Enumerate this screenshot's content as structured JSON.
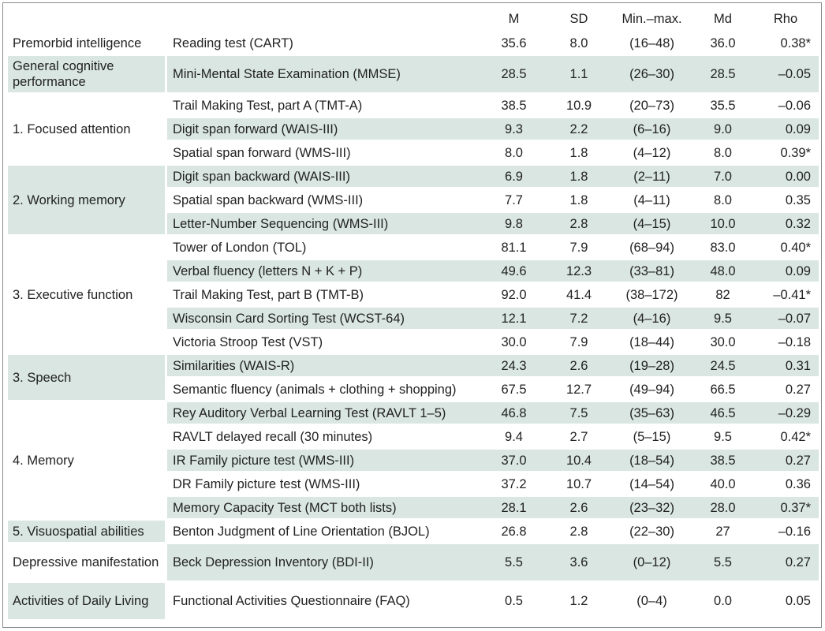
{
  "headers": [
    "",
    "",
    "M",
    "SD",
    "Min.–max.",
    "Md",
    "Rho"
  ],
  "rows": [
    {
      "domain": "Premorbid intelligence",
      "test": "Reading test (CART)",
      "m": "35.6",
      "sd": "8.0",
      "range": "(16–48)",
      "md": "36.0",
      "rho": "0.38*"
    },
    {
      "domain": "General cognitive performance",
      "test": "Mini-Mental State Examination (MMSE)",
      "m": "28.5",
      "sd": "1.1",
      "range": "(26–30)",
      "md": "28.5",
      "rho": "–0.05"
    },
    {
      "domain": "1. Focused attention",
      "test": "Trail Making Test, part A (TMT-A)",
      "m": "38.5",
      "sd": "10.9",
      "range": "(20–73)",
      "md": "35.5",
      "rho": "–0.06"
    },
    {
      "domain": "",
      "test": "Digit span forward (WAIS-III)",
      "m": "9.3",
      "sd": "2.2",
      "range": "(6–16)",
      "md": "9.0",
      "rho": "0.09"
    },
    {
      "domain": "",
      "test": "Spatial span forward (WMS-III)",
      "m": "8.0",
      "sd": "1.8",
      "range": "(4–12)",
      "md": "8.0",
      "rho": "0.39*"
    },
    {
      "domain": "2. Working memory",
      "test": "Digit span backward (WAIS-III)",
      "m": "6.9",
      "sd": "1.8",
      "range": "(2–11)",
      "md": "7.0",
      "rho": "0.00"
    },
    {
      "domain": "",
      "test": "Spatial span backward (WMS-III)",
      "m": "7.7",
      "sd": "1.8",
      "range": "(4–11)",
      "md": "8.0",
      "rho": "0.35"
    },
    {
      "domain": "",
      "test": "Letter-Number Sequencing (WMS-III)",
      "m": "9.8",
      "sd": "2.8",
      "range": "(4–15)",
      "md": "10.0",
      "rho": "0.32"
    },
    {
      "domain": "3. Executive function",
      "test": "Tower of London (TOL)",
      "m": "81.1",
      "sd": "7.9",
      "range": "(68–94)",
      "md": "83.0",
      "rho": "0.40*"
    },
    {
      "domain": "",
      "test": "Verbal fluency (letters N + K + P)",
      "m": "49.6",
      "sd": "12.3",
      "range": "(33–81)",
      "md": "48.0",
      "rho": "0.09"
    },
    {
      "domain": "",
      "test": "Trail Making Test, part B (TMT-B)",
      "m": "92.0",
      "sd": "41.4",
      "range": "(38–172)",
      "md": "82",
      "rho": "–0.41*"
    },
    {
      "domain": "",
      "test": "Wisconsin Card Sorting Test (WCST-64)",
      "m": "12.1",
      "sd": "7.2",
      "range": "(4–16)",
      "md": "9.5",
      "rho": "–0.07"
    },
    {
      "domain": "",
      "test": "Victoria Stroop Test (VST)",
      "m": "30.0",
      "sd": "7.9",
      "range": "(18–44)",
      "md": "30.0",
      "rho": "–0.18"
    },
    {
      "domain": "3. Speech",
      "test": "Similarities (WAIS-R)",
      "m": "24.3",
      "sd": "2.6",
      "range": "(19–28)",
      "md": "24.5",
      "rho": "0.31"
    },
    {
      "domain": "",
      "test": "Semantic fluency (animals + clothing + shopping)",
      "m": "67.5",
      "sd": "12.7",
      "range": "(49–94)",
      "md": "66.5",
      "rho": "0.27"
    },
    {
      "domain": "4. Memory",
      "test": "Rey Auditory Verbal Learning Test (RAVLT 1–5)",
      "m": "46.8",
      "sd": "7.5",
      "range": "(35–63)",
      "md": "46.5",
      "rho": "–0.29"
    },
    {
      "domain": "",
      "test": "RAVLT delayed recall (30 minutes)",
      "m": "9.4",
      "sd": "2.7",
      "range": "(5–15)",
      "md": "9.5",
      "rho": "0.42*"
    },
    {
      "domain": "",
      "test": "IR Family picture test (WMS-III)",
      "m": "37.0",
      "sd": "10.4",
      "range": "(18–54)",
      "md": "38.5",
      "rho": "0.27"
    },
    {
      "domain": "",
      "test": "DR Family picture test (WMS-III)",
      "m": "37.2",
      "sd": "10.7",
      "range": "(14–54)",
      "md": "40.0",
      "rho": "0.36"
    },
    {
      "domain": "",
      "test": "Memory Capacity Test (MCT both lists)",
      "m": "28.1",
      "sd": "2.6",
      "range": "(23–32)",
      "md": "28.0",
      "rho": "0.37*"
    },
    {
      "domain": "5. Visuospatial abilities",
      "test": "Benton Judgment of Line Orientation (BJOL)",
      "m": "26.8",
      "sd": "2.8",
      "range": "(22–30)",
      "md": "27",
      "rho": "–0.16"
    },
    {
      "domain": "Depressive manifestation",
      "test": "Beck Depression Inventory (BDI-II)",
      "m": "5.5",
      "sd": "3.6",
      "range": "(0–12)",
      "md": "5.5",
      "rho": "0.27"
    },
    {
      "domain": "Activities of Daily Living",
      "test": "Functional Activities Questionnaire (FAQ)",
      "m": "0.5",
      "sd": "1.2",
      "range": "(0–4)",
      "md": "0.0",
      "rho": "0.05"
    }
  ],
  "colors": {
    "shade": "#d9e6e1",
    "border": "#8a8a8a"
  }
}
